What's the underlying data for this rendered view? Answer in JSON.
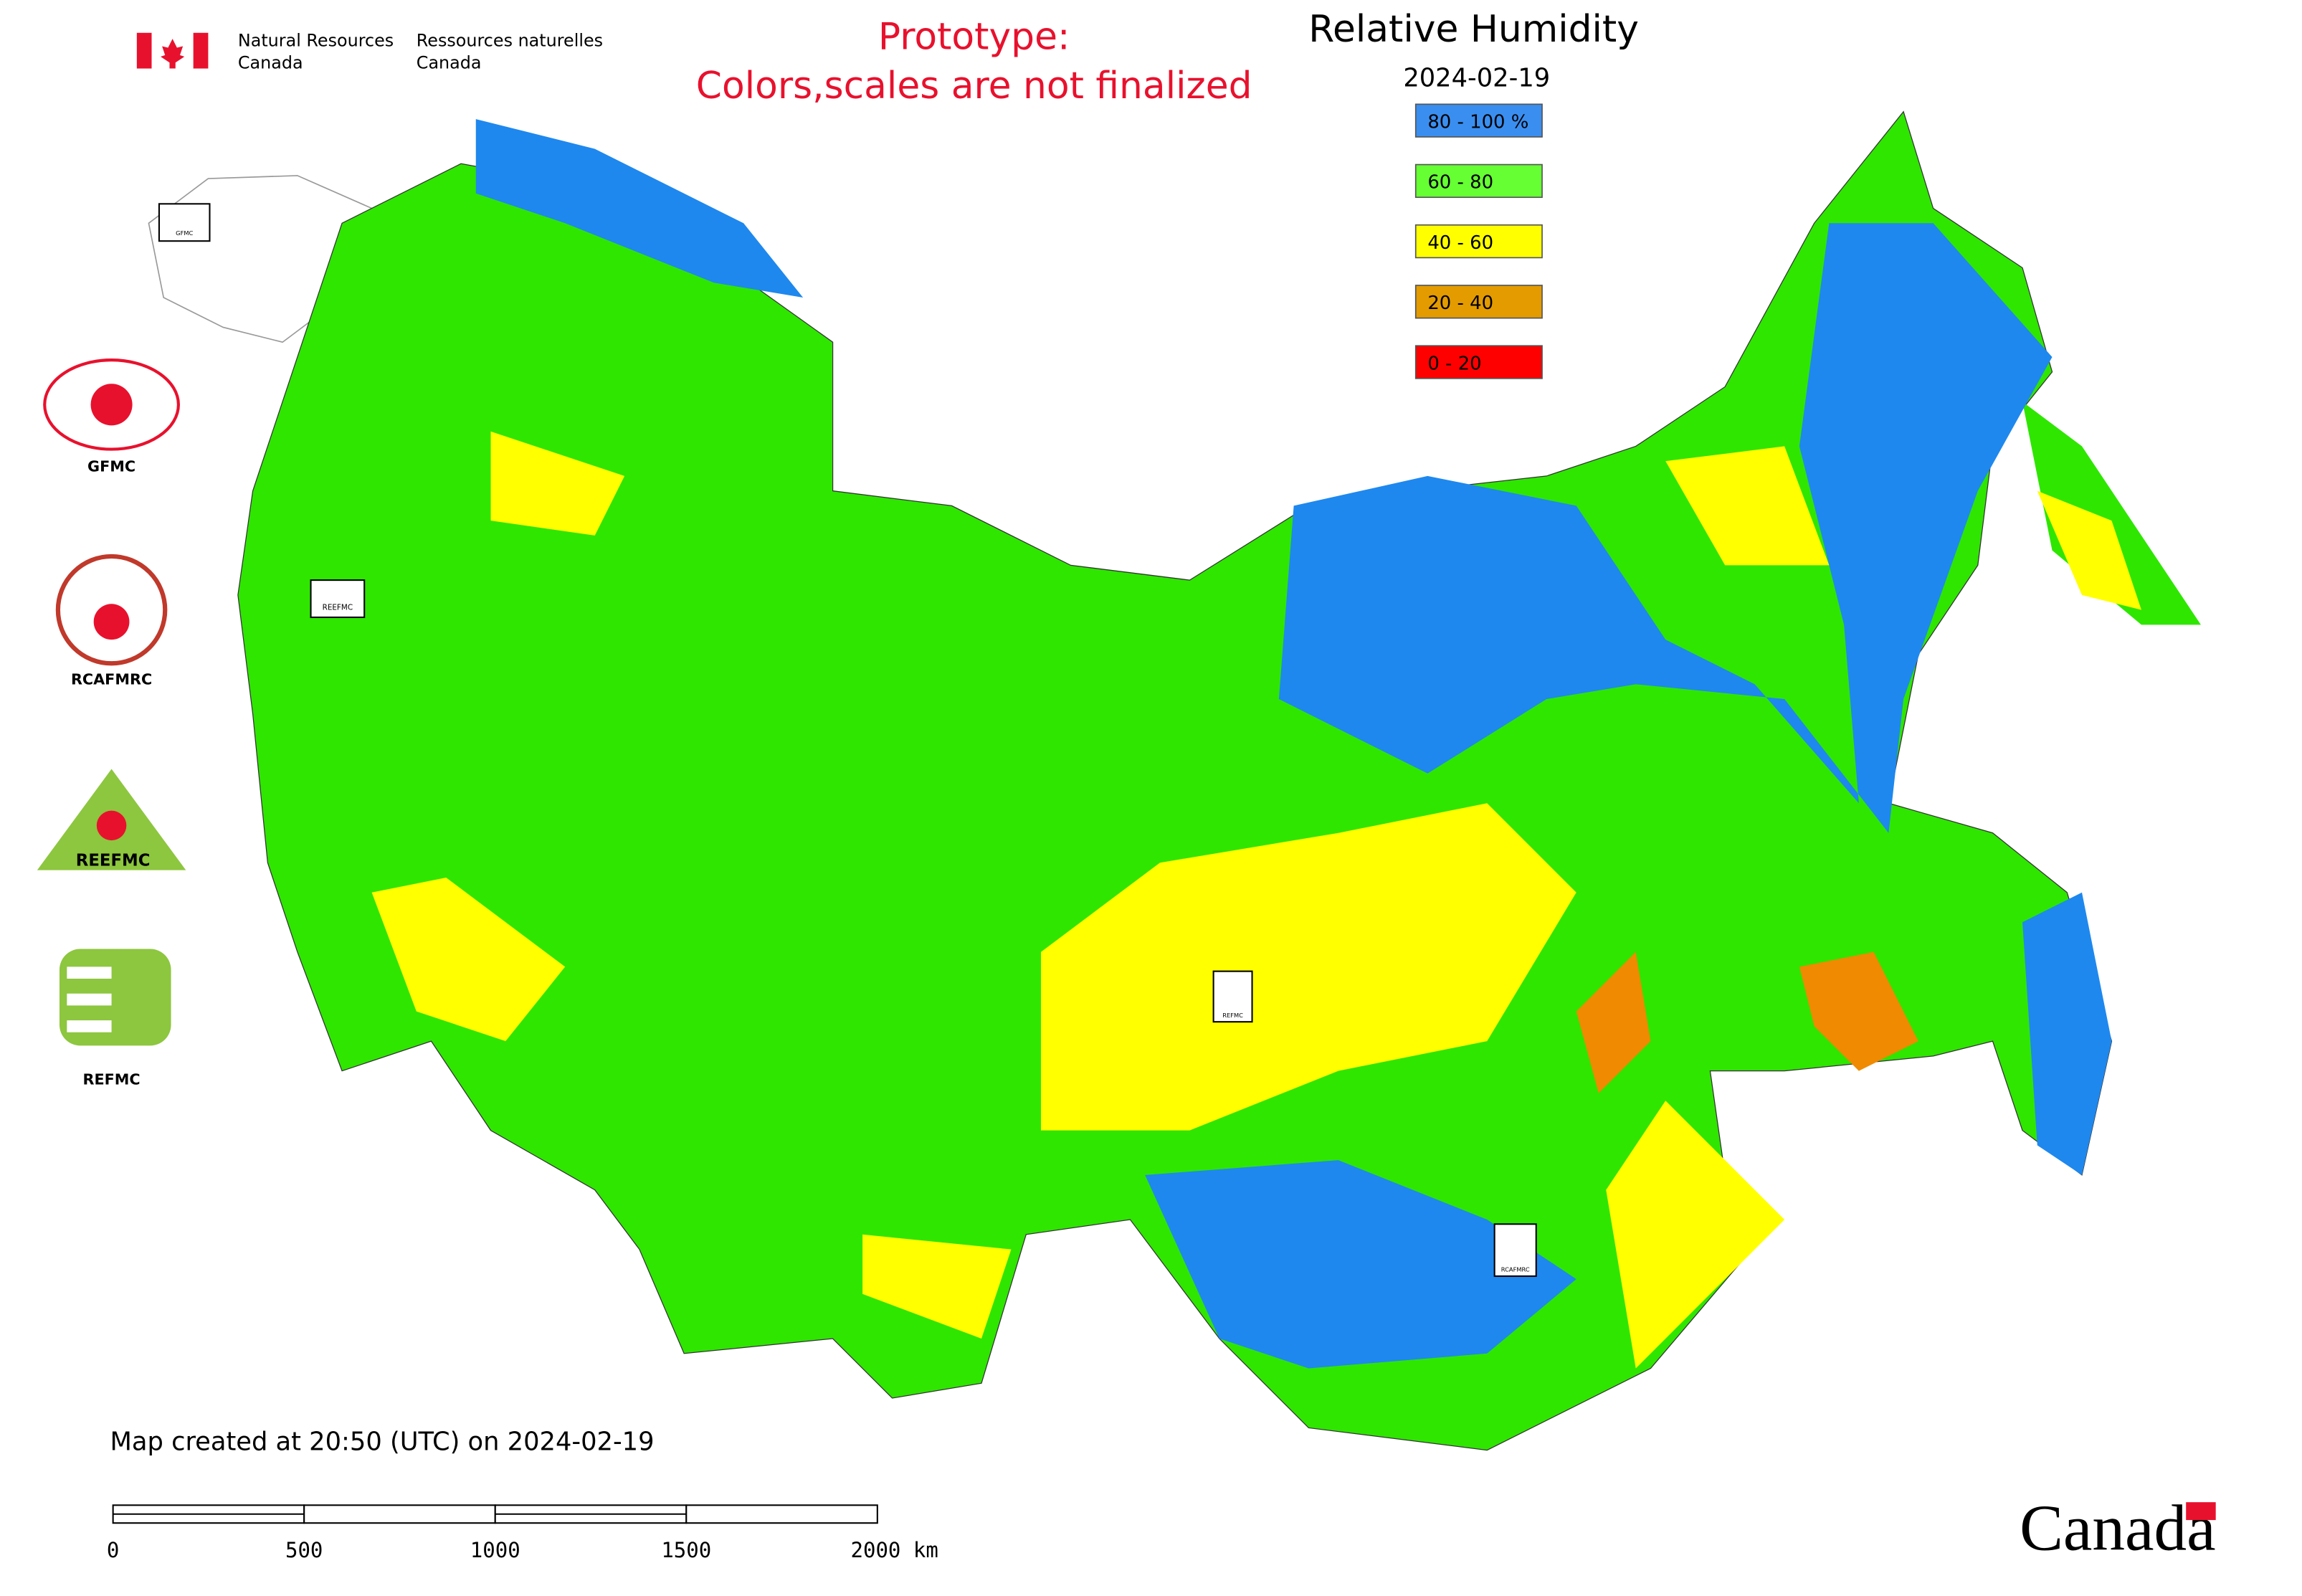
{
  "header": {
    "agency_en_line1": "Natural Resources",
    "agency_en_line2": "Canada",
    "agency_fr_line1": "Ressources naturelles",
    "agency_fr_line2": "Canada"
  },
  "notice": {
    "line1": "Prototype:",
    "line2": "Colors,scales are not finalized"
  },
  "legend": {
    "title": "Relative Humidity",
    "date": "2024-02-19",
    "items": [
      {
        "label": "80 - 100 %",
        "color": "#3a8ef0"
      },
      {
        "label": "60 - 80",
        "color": "#66ff33"
      },
      {
        "label": "40 - 60",
        "color": "#ffff00"
      },
      {
        "label": "20 - 40",
        "color": "#e39b00"
      },
      {
        "label": "0 - 20",
        "color": "#ff0000"
      }
    ]
  },
  "logos": [
    "GFMC",
    "RCAFMRC",
    "REEFMC",
    "REFMC"
  ],
  "map_markers": [
    "GFMC",
    "REEFMC",
    "REFMC",
    "RCAFMRC"
  ],
  "footer": {
    "created": "Map created at 20:50 (UTC) on 2024-02-19",
    "scale_labels": [
      "0",
      "500",
      "1000",
      "1500",
      "2000 km"
    ],
    "wordmark": "Canada"
  }
}
